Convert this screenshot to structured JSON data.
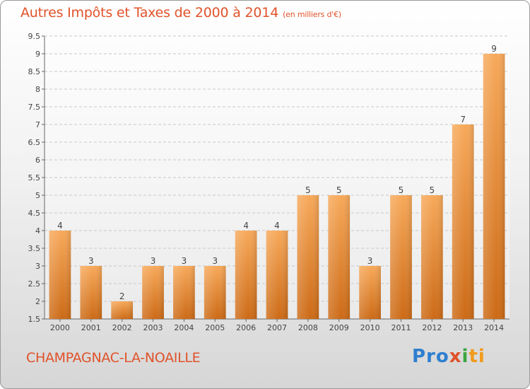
{
  "header": {
    "title": "Autres Impôts et Taxes de 2000 à 2014",
    "unit": "(en milliers d'€)"
  },
  "footer": {
    "commune": "CHAMPAGNAC-LA-NOAILLE",
    "logo_parts": [
      "Pro",
      "x",
      "i",
      "ti"
    ]
  },
  "colors": {
    "bar_top": "#f7a95a",
    "bar_bottom": "#cc6a16",
    "title": "#e0522a",
    "grid": "#c8c8c8"
  },
  "chart_data": {
    "type": "bar",
    "title": "Autres Impôts et Taxes de 2000 à 2014",
    "xlabel": "",
    "ylabel": "",
    "categories": [
      "2000",
      "2001",
      "2002",
      "2003",
      "2004",
      "2005",
      "2006",
      "2007",
      "2008",
      "2009",
      "2010",
      "2011",
      "2012",
      "2013",
      "2014"
    ],
    "values": [
      4,
      3,
      2,
      3,
      3,
      3,
      4,
      4,
      5,
      5,
      3,
      5,
      5,
      7,
      9
    ],
    "ylim": [
      1.5,
      9.5
    ],
    "yticks": [
      "1.5",
      "2",
      "2.5",
      "3",
      "3.5",
      "4",
      "4.5",
      "5",
      "5.5",
      "6",
      "6.5",
      "7",
      "7.5",
      "8",
      "8.5",
      "9",
      "9.5"
    ],
    "grid": true
  }
}
